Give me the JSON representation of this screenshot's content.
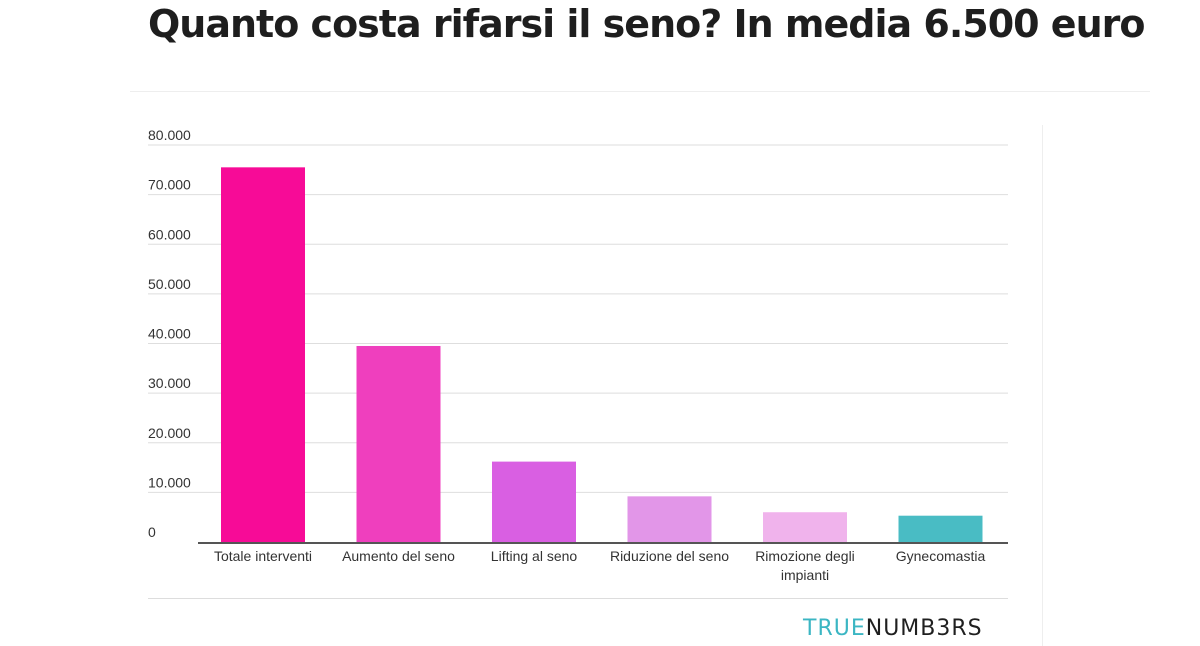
{
  "headline": "Quanto costa rifarsi il seno? In media 6.500 euro",
  "brand": {
    "part1": "TRUE",
    "part2": "NUMB3RS",
    "color1": "#3bb6c3",
    "color2": "#1f1f1f"
  },
  "chart_data": {
    "type": "bar",
    "categories": [
      "Totale interventi",
      "Aumento del seno",
      "Lifting al seno",
      "Riduzione del seno",
      "Rimozione degli impianti",
      "Gynecomastia"
    ],
    "values": [
      75500,
      39500,
      16200,
      9200,
      6000,
      5300
    ],
    "colors": [
      "#f70b97",
      "#ef3fbe",
      "#d95fe2",
      "#e296e8",
      "#f0b3ec",
      "#49bcc4"
    ],
    "yticks": [
      "0",
      "10.000",
      "20.000",
      "30.000",
      "40.000",
      "50.000",
      "60.000",
      "70.000",
      "80.000"
    ],
    "ylim": [
      0,
      80000
    ],
    "grid": true
  }
}
